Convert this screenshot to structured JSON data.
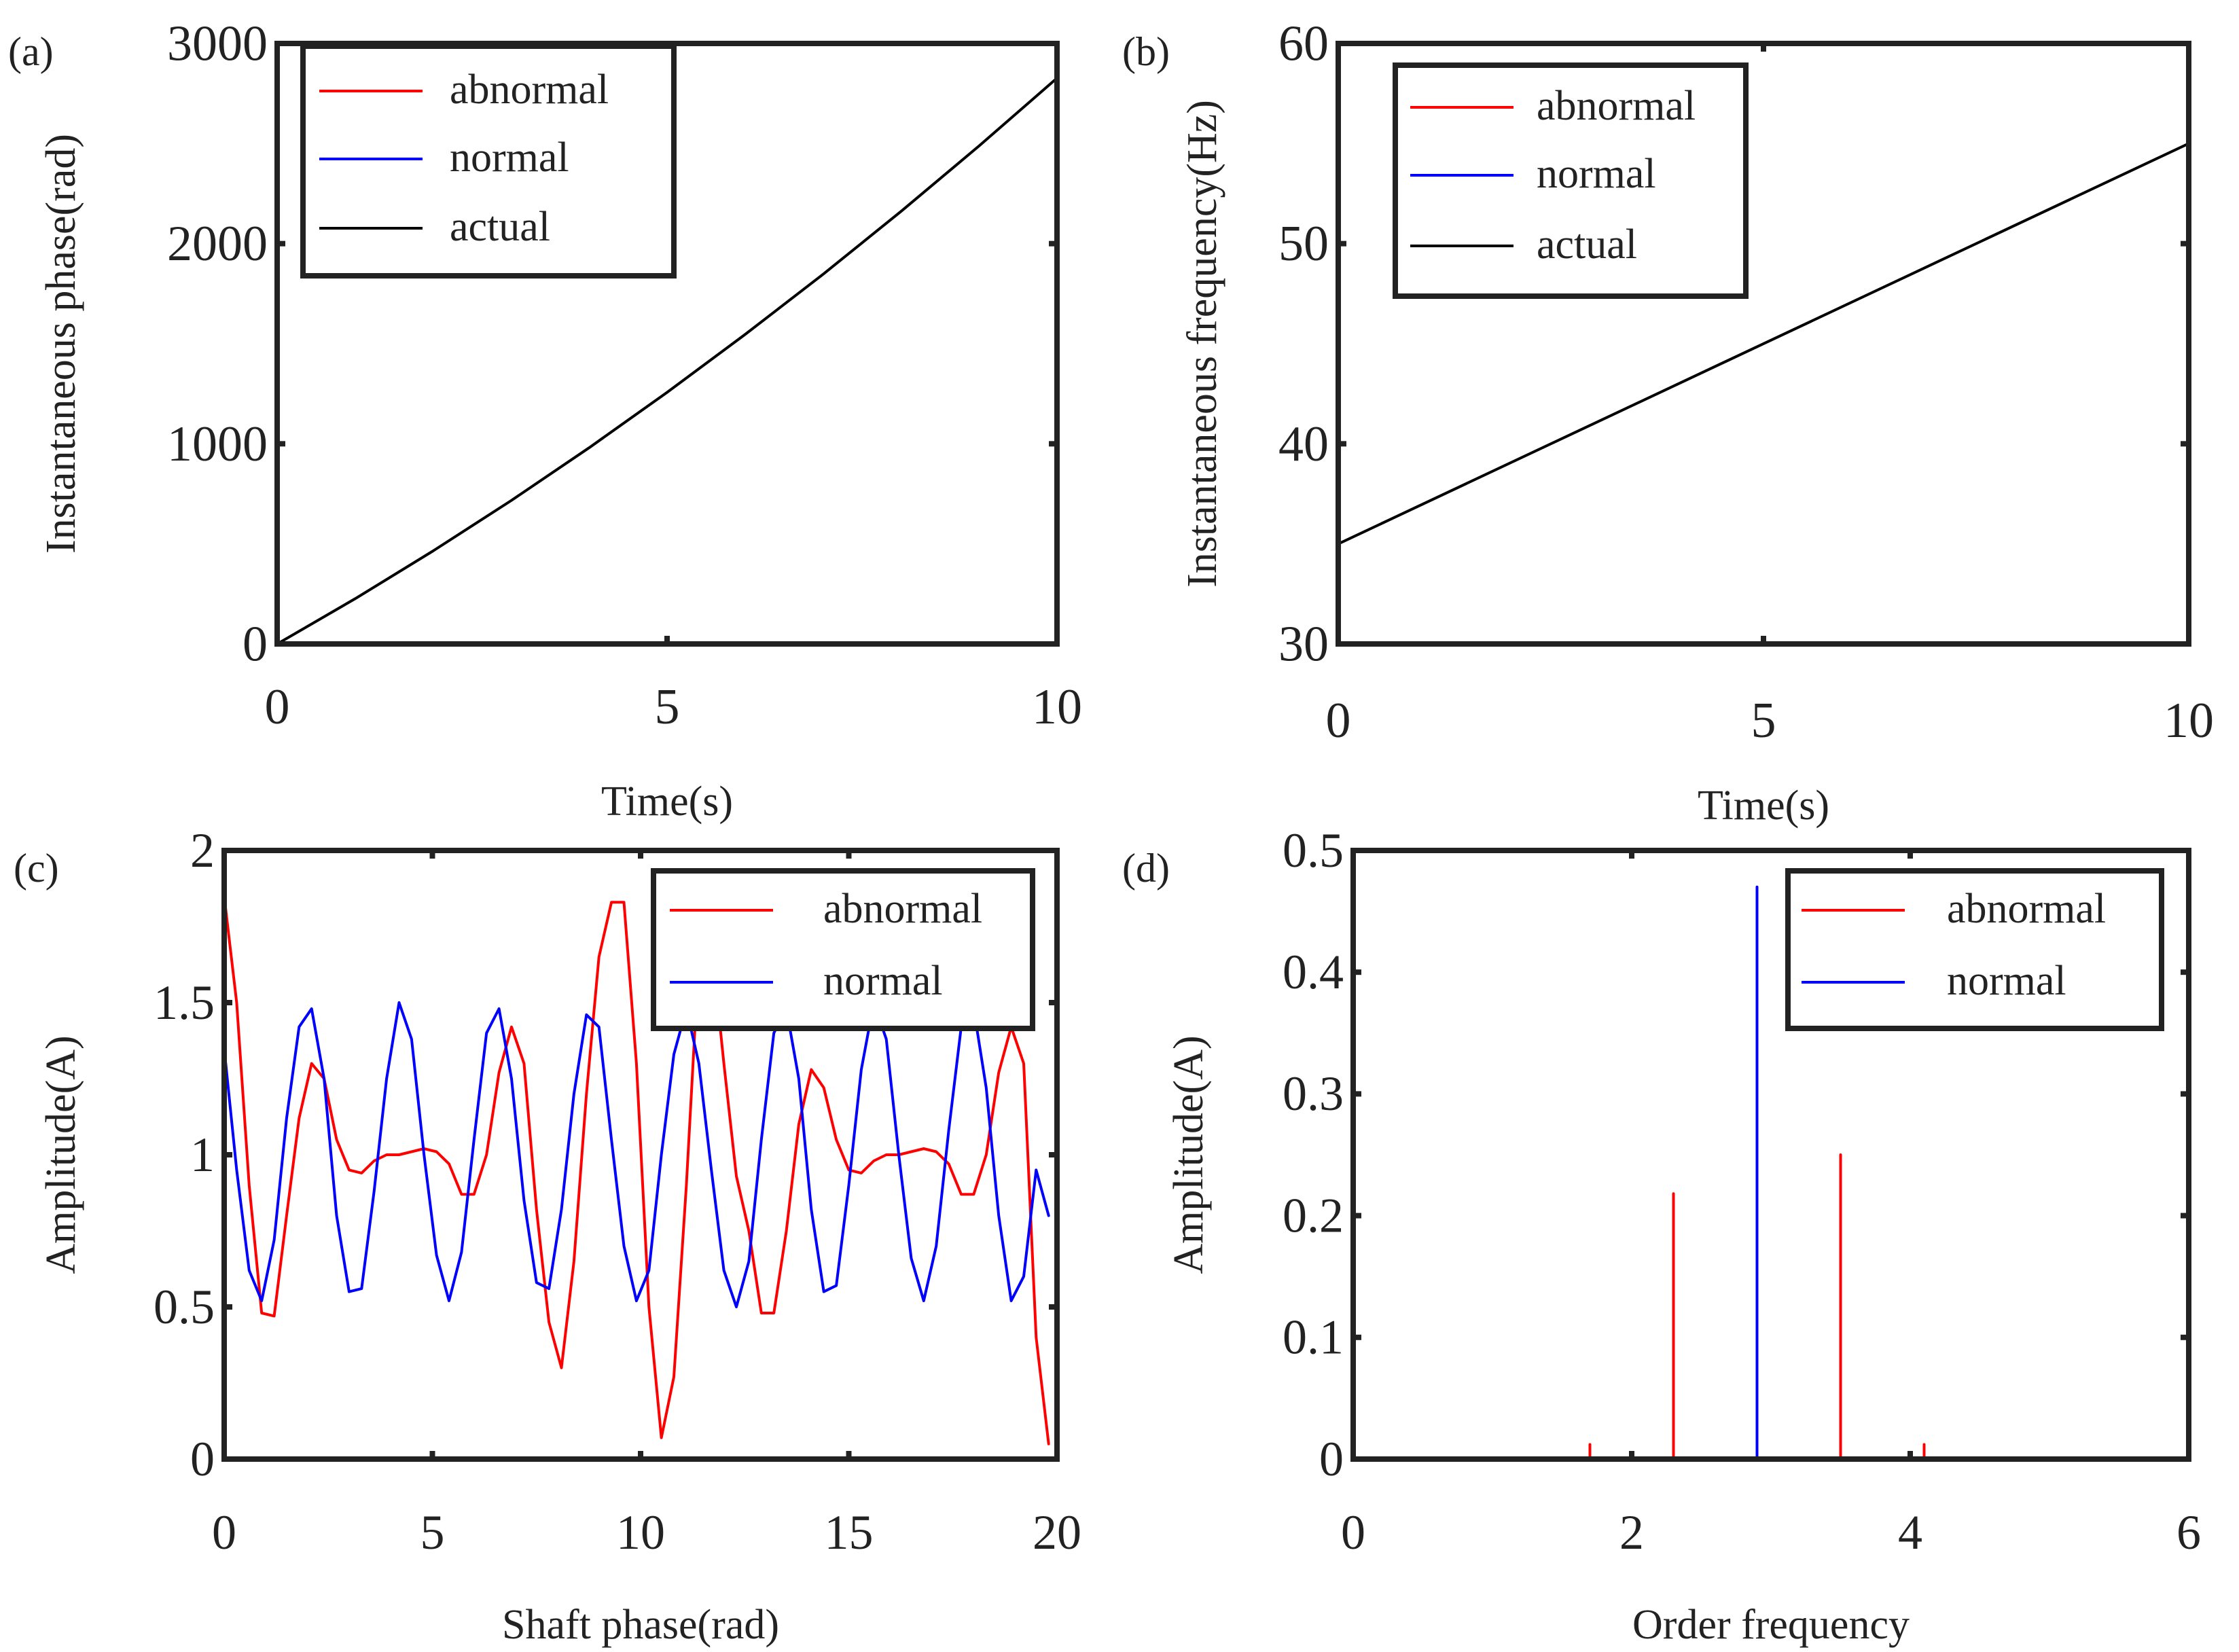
{
  "figure": {
    "background": "#ffffff",
    "axis_color": "#222222"
  },
  "chart_data": [
    {
      "id": "a",
      "panel_label": "(a)",
      "type": "line",
      "xlabel": "Time(s)",
      "ylabel": "Instantaneous phase(rad)",
      "xlim": [
        0,
        10
      ],
      "ylim": [
        0,
        3000
      ],
      "xticks": [
        0,
        5,
        10
      ],
      "yticks": [
        0,
        1000,
        2000,
        3000
      ],
      "grid": false,
      "legend": {
        "placement": "top-left",
        "entries": [
          {
            "name": "abnormal",
            "color": "#ff0000"
          },
          {
            "name": "normal",
            "color": "#0000ff"
          },
          {
            "name": "actual",
            "color": "#000000"
          }
        ]
      },
      "series": [
        {
          "name": "actual",
          "color": "#000000",
          "x": [
            0,
            1,
            2,
            3,
            4,
            5,
            6,
            7,
            8,
            9,
            10
          ],
          "y": [
            0,
            226,
            465,
            716,
            980,
            1257,
            1546,
            1847,
            2161,
            2488,
            2827
          ]
        }
      ]
    },
    {
      "id": "b",
      "panel_label": "(b)",
      "type": "line",
      "xlabel": "Time(s)",
      "ylabel": "Instantaneous frequency(Hz)",
      "xlim": [
        0,
        10
      ],
      "ylim": [
        30,
        60
      ],
      "xticks": [
        0,
        5,
        10
      ],
      "yticks": [
        30,
        40,
        50,
        60
      ],
      "grid": false,
      "legend": {
        "placement": "top-left",
        "entries": [
          {
            "name": "abnormal",
            "color": "#ff0000"
          },
          {
            "name": "normal",
            "color": "#0000ff"
          },
          {
            "name": "actual",
            "color": "#000000"
          }
        ]
      },
      "series": [
        {
          "name": "actual",
          "color": "#000000",
          "x": [
            0,
            10
          ],
          "y": [
            35,
            55
          ]
        }
      ]
    },
    {
      "id": "c",
      "panel_label": "(c)",
      "type": "line",
      "xlabel": "Shaft phase(rad)",
      "ylabel": "Amplitude(A)",
      "xlim": [
        0,
        20
      ],
      "ylim": [
        0,
        2
      ],
      "xticks": [
        0,
        5,
        10,
        15,
        20
      ],
      "yticks": [
        0,
        0.5,
        1,
        1.5,
        2
      ],
      "ytick_labels": [
        "0",
        "0.5",
        "1",
        "1.5",
        "2"
      ],
      "grid": false,
      "legend": {
        "placement": "top-right",
        "entries": [
          {
            "name": "abnormal",
            "color": "#ff0000"
          },
          {
            "name": "normal",
            "color": "#0000ff"
          }
        ]
      },
      "series": [
        {
          "name": "abnormal",
          "color": "#ff0000",
          "x": [
            0,
            0.3,
            0.6,
            0.9,
            1.2,
            1.5,
            1.8,
            2.1,
            2.4,
            2.7,
            3.0,
            3.3,
            3.6,
            3.9,
            4.2,
            4.5,
            4.8,
            5.1,
            5.4,
            5.7,
            6.0,
            6.3,
            6.6,
            6.9,
            7.2,
            7.5,
            7.8,
            8.1,
            8.4,
            8.7,
            9.0,
            9.3,
            9.6,
            9.9,
            10.2,
            10.5,
            10.8,
            11.1,
            11.4,
            11.7,
            12.0,
            12.3,
            12.6,
            12.9,
            13.2,
            13.5,
            13.8,
            14.1,
            14.4,
            14.7,
            15.0,
            15.3,
            15.6,
            15.9,
            16.2,
            16.5,
            16.8,
            17.1,
            17.4,
            17.7,
            18.0,
            18.3,
            18.6,
            18.9,
            19.2,
            19.5,
            19.8
          ],
          "y": [
            1.85,
            1.5,
            0.9,
            0.48,
            0.47,
            0.8,
            1.12,
            1.3,
            1.25,
            1.05,
            0.95,
            0.94,
            0.98,
            1.0,
            1.0,
            1.01,
            1.02,
            1.01,
            0.97,
            0.87,
            0.87,
            1.0,
            1.27,
            1.42,
            1.3,
            0.82,
            0.45,
            0.3,
            0.65,
            1.2,
            1.65,
            1.83,
            1.83,
            1.3,
            0.5,
            0.07,
            0.27,
            0.9,
            1.65,
            1.7,
            1.3,
            0.93,
            0.75,
            0.48,
            0.48,
            0.75,
            1.1,
            1.28,
            1.22,
            1.05,
            0.95,
            0.94,
            0.98,
            1.0,
            1.0,
            1.01,
            1.02,
            1.01,
            0.97,
            0.87,
            0.87,
            1.0,
            1.27,
            1.42,
            1.3,
            0.4,
            0.05
          ]
        },
        {
          "name": "normal",
          "color": "#0000ff",
          "x": [
            0,
            0.3,
            0.6,
            0.9,
            1.2,
            1.5,
            1.8,
            2.1,
            2.4,
            2.7,
            3.0,
            3.3,
            3.6,
            3.9,
            4.2,
            4.5,
            4.8,
            5.1,
            5.4,
            5.7,
            6.0,
            6.3,
            6.6,
            6.9,
            7.2,
            7.5,
            7.8,
            8.1,
            8.4,
            8.7,
            9.0,
            9.3,
            9.6,
            9.9,
            10.2,
            10.5,
            10.8,
            11.1,
            11.4,
            11.7,
            12.0,
            12.3,
            12.6,
            12.9,
            13.2,
            13.5,
            13.8,
            14.1,
            14.4,
            14.7,
            15.0,
            15.3,
            15.6,
            15.9,
            16.2,
            16.5,
            16.8,
            17.1,
            17.4,
            17.7,
            18.0,
            18.3,
            18.6,
            18.9,
            19.2,
            19.5,
            19.8
          ],
          "y": [
            1.35,
            0.95,
            0.62,
            0.52,
            0.72,
            1.12,
            1.42,
            1.48,
            1.25,
            0.8,
            0.55,
            0.56,
            0.88,
            1.25,
            1.5,
            1.38,
            1.0,
            0.67,
            0.52,
            0.68,
            1.05,
            1.4,
            1.48,
            1.25,
            0.85,
            0.58,
            0.56,
            0.82,
            1.2,
            1.46,
            1.42,
            1.05,
            0.7,
            0.52,
            0.62,
            1.0,
            1.33,
            1.48,
            1.3,
            0.95,
            0.62,
            0.5,
            0.65,
            1.05,
            1.4,
            1.48,
            1.25,
            0.82,
            0.55,
            0.57,
            0.9,
            1.28,
            1.5,
            1.38,
            1.0,
            0.66,
            0.52,
            0.7,
            1.08,
            1.42,
            1.48,
            1.22,
            0.8,
            0.52,
            0.6,
            0.95,
            0.8
          ]
        }
      ]
    },
    {
      "id": "d",
      "panel_label": "(d)",
      "type": "line",
      "xlabel": "Order frequency",
      "ylabel": "Amplitude(A)",
      "xlim": [
        0,
        6
      ],
      "ylim": [
        0,
        0.5
      ],
      "xticks": [
        0,
        2,
        4,
        6
      ],
      "yticks": [
        0,
        0.1,
        0.2,
        0.3,
        0.4,
        0.5
      ],
      "ytick_labels": [
        "0",
        "0.1",
        "0.2",
        "0.3",
        "0.4",
        "0.5"
      ],
      "grid": false,
      "legend": {
        "placement": "top-right",
        "entries": [
          {
            "name": "abnormal",
            "color": "#ff0000"
          },
          {
            "name": "normal",
            "color": "#0000ff"
          }
        ]
      },
      "series": [
        {
          "name": "abnormal",
          "color": "#ff0000",
          "x": [
            0,
            1.7,
            1.7,
            1.7,
            2.3,
            2.3,
            2.3,
            3.5,
            3.5,
            3.5,
            4.1,
            4.1,
            4.1,
            6
          ],
          "y": [
            0,
            0,
            0.012,
            0,
            0,
            0.218,
            0,
            0,
            0.25,
            0,
            0,
            0.012,
            0,
            0
          ]
        },
        {
          "name": "normal",
          "color": "#0000ff",
          "x": [
            0,
            2.9,
            2.9,
            2.9,
            6
          ],
          "y": [
            0,
            0,
            0.47,
            0,
            0
          ]
        }
      ]
    }
  ]
}
